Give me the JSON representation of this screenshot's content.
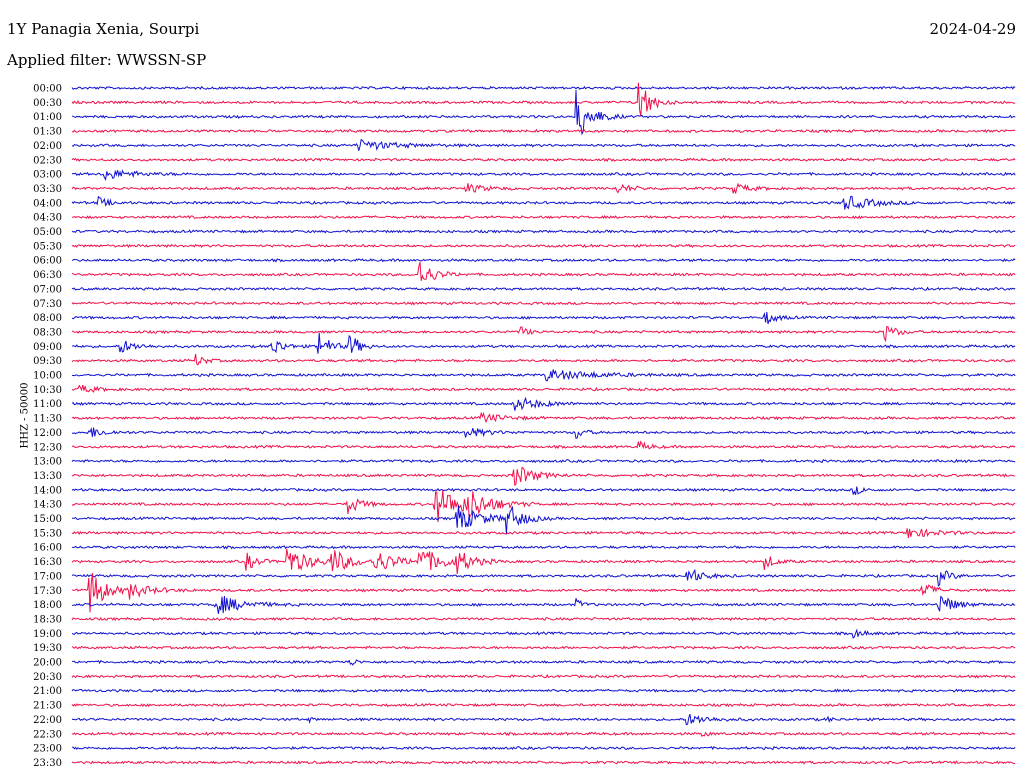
{
  "header": {
    "station": "1Y Panagia Xenia, Sourpi",
    "date": "2024-04-29",
    "filter": "Applied filter: WWSSN-SP"
  },
  "chart_data": {
    "type": "line",
    "title": "1Y Panagia Xenia, Sourpi",
    "ylabel": "HHZ - 50000",
    "trace_colors": [
      "#1010d0",
      "#f0104a"
    ],
    "times": [
      "00:00",
      "00:30",
      "01:00",
      "01:30",
      "02:00",
      "02:30",
      "03:00",
      "03:30",
      "04:00",
      "04:30",
      "05:00",
      "05:30",
      "06:00",
      "06:30",
      "07:00",
      "07:30",
      "08:00",
      "08:30",
      "09:00",
      "09:30",
      "10:00",
      "10:30",
      "11:00",
      "11:30",
      "12:00",
      "12:30",
      "13:00",
      "13:30",
      "14:00",
      "14:30",
      "15:00",
      "15:30",
      "16:00",
      "16:30",
      "17:00",
      "17:30",
      "18:00",
      "18:30",
      "19:00",
      "19:30",
      "20:00",
      "20:30",
      "21:00",
      "21:30",
      "22:00",
      "22:30",
      "23:00",
      "23:30"
    ],
    "x_range": [
      0,
      30
    ],
    "events": [
      {
        "row": 1,
        "t": 18.0,
        "amp": 28,
        "dur": 0.6
      },
      {
        "row": 2,
        "t": 16.0,
        "amp": 30,
        "dur": 0.8
      },
      {
        "row": 4,
        "t": 9.0,
        "amp": 6,
        "dur": 2.0
      },
      {
        "row": 6,
        "t": 1.0,
        "amp": 6,
        "dur": 1.5
      },
      {
        "row": 7,
        "t": 12.5,
        "amp": 5,
        "dur": 1.0
      },
      {
        "row": 7,
        "t": 17.3,
        "amp": 5,
        "dur": 0.8
      },
      {
        "row": 7,
        "t": 21.0,
        "amp": 6,
        "dur": 0.8
      },
      {
        "row": 8,
        "t": 0.8,
        "amp": 6,
        "dur": 0.6
      },
      {
        "row": 8,
        "t": 24.5,
        "amp": 8,
        "dur": 1.5
      },
      {
        "row": 13,
        "t": 11.0,
        "amp": 16,
        "dur": 0.8
      },
      {
        "row": 16,
        "t": 22.0,
        "amp": 8,
        "dur": 0.6
      },
      {
        "row": 17,
        "t": 14.2,
        "amp": 8,
        "dur": 0.4
      },
      {
        "row": 17,
        "t": 25.8,
        "amp": 10,
        "dur": 0.6
      },
      {
        "row": 18,
        "t": 1.5,
        "amp": 8,
        "dur": 0.8
      },
      {
        "row": 18,
        "t": 6.3,
        "amp": 12,
        "dur": 0.6
      },
      {
        "row": 18,
        "t": 7.8,
        "amp": 18,
        "dur": 0.6
      },
      {
        "row": 18,
        "t": 8.8,
        "amp": 16,
        "dur": 0.5
      },
      {
        "row": 19,
        "t": 3.9,
        "amp": 7,
        "dur": 0.5
      },
      {
        "row": 20,
        "t": 15.0,
        "amp": 6,
        "dur": 2.5
      },
      {
        "row": 21,
        "t": 0.2,
        "amp": 5,
        "dur": 0.8
      },
      {
        "row": 22,
        "t": 14.0,
        "amp": 8,
        "dur": 1.4
      },
      {
        "row": 23,
        "t": 13.0,
        "amp": 5,
        "dur": 1.2
      },
      {
        "row": 24,
        "t": 0.5,
        "amp": 7,
        "dur": 0.8
      },
      {
        "row": 24,
        "t": 12.5,
        "amp": 6,
        "dur": 1.0
      },
      {
        "row": 24,
        "t": 16.0,
        "amp": 8,
        "dur": 0.4
      },
      {
        "row": 25,
        "t": 18.0,
        "amp": 5,
        "dur": 0.6
      },
      {
        "row": 27,
        "t": 14.0,
        "amp": 14,
        "dur": 1.0
      },
      {
        "row": 28,
        "t": 24.8,
        "amp": 6,
        "dur": 0.5
      },
      {
        "row": 29,
        "t": 8.7,
        "amp": 12,
        "dur": 0.7
      },
      {
        "row": 29,
        "t": 11.5,
        "amp": 20,
        "dur": 1.6
      },
      {
        "row": 29,
        "t": 12.5,
        "amp": 14,
        "dur": 1.2
      },
      {
        "row": 30,
        "t": 12.2,
        "amp": 14,
        "dur": 1.4
      },
      {
        "row": 30,
        "t": 13.8,
        "amp": 16,
        "dur": 0.8
      },
      {
        "row": 31,
        "t": 26.5,
        "amp": 6,
        "dur": 1.4
      },
      {
        "row": 33,
        "t": 5.5,
        "amp": 10,
        "dur": 0.6
      },
      {
        "row": 33,
        "t": 6.8,
        "amp": 16,
        "dur": 1.2
      },
      {
        "row": 33,
        "t": 8.2,
        "amp": 14,
        "dur": 1.0
      },
      {
        "row": 33,
        "t": 9.6,
        "amp": 12,
        "dur": 1.2
      },
      {
        "row": 33,
        "t": 11.0,
        "amp": 14,
        "dur": 1.4
      },
      {
        "row": 33,
        "t": 12.2,
        "amp": 12,
        "dur": 0.8
      },
      {
        "row": 33,
        "t": 22.0,
        "amp": 8,
        "dur": 0.6
      },
      {
        "row": 34,
        "t": 19.5,
        "amp": 10,
        "dur": 0.8
      },
      {
        "row": 34,
        "t": 27.5,
        "amp": 10,
        "dur": 0.6
      },
      {
        "row": 35,
        "t": 0.5,
        "amp": 30,
        "dur": 0.8
      },
      {
        "row": 35,
        "t": 1.8,
        "amp": 8,
        "dur": 1.2
      },
      {
        "row": 35,
        "t": 27.0,
        "amp": 10,
        "dur": 0.6
      },
      {
        "row": 36,
        "t": 4.5,
        "amp": 12,
        "dur": 1.4
      },
      {
        "row": 36,
        "t": 16.0,
        "amp": 6,
        "dur": 0.4
      },
      {
        "row": 36,
        "t": 27.5,
        "amp": 14,
        "dur": 0.8
      },
      {
        "row": 38,
        "t": 24.8,
        "amp": 5,
        "dur": 0.6
      },
      {
        "row": 40,
        "t": 8.8,
        "amp": 6,
        "dur": 0.3
      },
      {
        "row": 44,
        "t": 19.5,
        "amp": 6,
        "dur": 1.2
      },
      {
        "row": 44,
        "t": 7.5,
        "amp": 3,
        "dur": 0.2
      },
      {
        "row": 44,
        "t": 24.0,
        "amp": 4,
        "dur": 0.2
      },
      {
        "row": 45,
        "t": 20.0,
        "amp": 3,
        "dur": 0.4
      }
    ]
  }
}
